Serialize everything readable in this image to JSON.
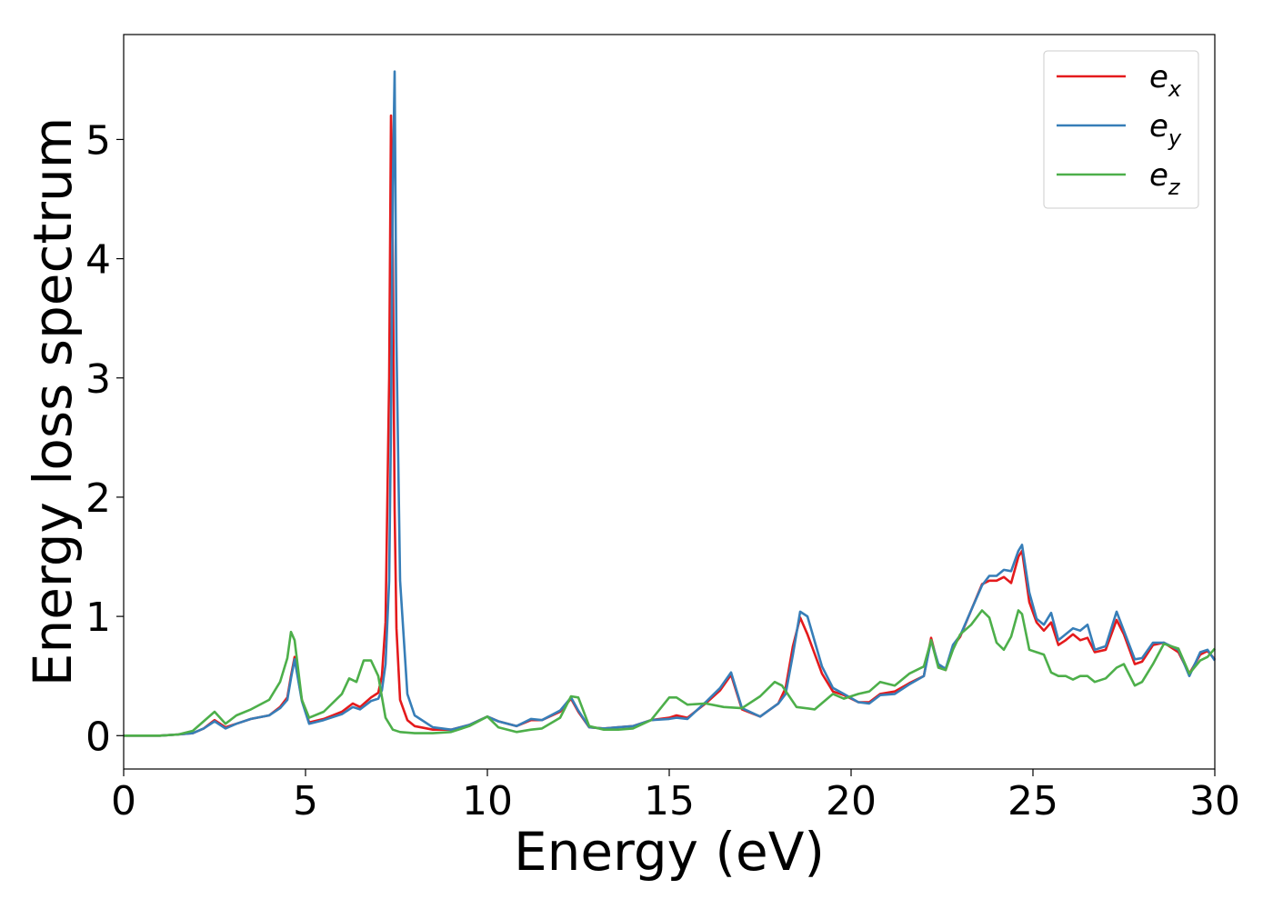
{
  "chart_data": {
    "type": "line",
    "xlabel": "Energy (eV)",
    "ylabel": "Energy loss spectrum",
    "xlim": [
      0,
      30
    ],
    "ylim": [
      -0.28,
      5.88
    ],
    "xticks": [
      0,
      5,
      10,
      15,
      20,
      25,
      30
    ],
    "yticks": [
      0,
      1,
      2,
      3,
      4,
      5
    ],
    "grid": false,
    "legend_position": "top-right",
    "series": [
      {
        "name": "e_x",
        "label_base": "e",
        "label_sub": "x",
        "color": "#e41a1c",
        "x": [
          0,
          1,
          1.5,
          1.9,
          2.2,
          2.5,
          2.8,
          3.1,
          3.5,
          4.0,
          4.3,
          4.5,
          4.6,
          4.7,
          4.9,
          5.1,
          5.5,
          6.0,
          6.3,
          6.5,
          6.8,
          7.0,
          7.1,
          7.2,
          7.3,
          7.35,
          7.4,
          7.45,
          7.5,
          7.6,
          7.8,
          8.0,
          8.5,
          9.0,
          9.5,
          10.0,
          10.3,
          10.8,
          11.2,
          11.5,
          12.0,
          12.3,
          12.5,
          12.8,
          13.2,
          13.6,
          14.0,
          14.5,
          15.0,
          15.2,
          15.5,
          16.0,
          16.4,
          16.7,
          17.0,
          17.5,
          18.0,
          18.2,
          18.4,
          18.6,
          18.8,
          19.2,
          19.5,
          19.8,
          20.2,
          20.5,
          20.8,
          21.2,
          21.6,
          22.0,
          22.2,
          22.4,
          22.6,
          22.8,
          23.0,
          23.3,
          23.6,
          23.8,
          24.0,
          24.2,
          24.4,
          24.6,
          24.7,
          24.9,
          25.1,
          25.3,
          25.5,
          25.7,
          25.9,
          26.1,
          26.3,
          26.5,
          26.7,
          27.0,
          27.3,
          27.5,
          27.8,
          28.0,
          28.3,
          28.6,
          29.0,
          29.3,
          29.6,
          29.8,
          30.0
        ],
        "values": [
          0,
          0,
          0.01,
          0.02,
          0.06,
          0.13,
          0.07,
          0.1,
          0.14,
          0.17,
          0.24,
          0.32,
          0.5,
          0.66,
          0.3,
          0.11,
          0.14,
          0.2,
          0.27,
          0.24,
          0.32,
          0.36,
          0.5,
          0.95,
          3.0,
          5.2,
          4.0,
          1.9,
          0.9,
          0.3,
          0.13,
          0.08,
          0.05,
          0.05,
          0.09,
          0.16,
          0.12,
          0.08,
          0.13,
          0.13,
          0.2,
          0.31,
          0.2,
          0.07,
          0.06,
          0.07,
          0.08,
          0.13,
          0.15,
          0.17,
          0.15,
          0.27,
          0.38,
          0.51,
          0.22,
          0.16,
          0.27,
          0.4,
          0.75,
          0.99,
          0.85,
          0.52,
          0.37,
          0.34,
          0.28,
          0.28,
          0.35,
          0.37,
          0.44,
          0.5,
          0.82,
          0.58,
          0.55,
          0.75,
          0.83,
          1.05,
          1.27,
          1.3,
          1.3,
          1.33,
          1.28,
          1.5,
          1.55,
          1.12,
          0.95,
          0.88,
          0.95,
          0.76,
          0.8,
          0.85,
          0.8,
          0.82,
          0.7,
          0.72,
          0.97,
          0.85,
          0.6,
          0.62,
          0.76,
          0.78,
          0.7,
          0.52,
          0.68,
          0.71,
          0.64
        ]
      },
      {
        "name": "e_y",
        "label_base": "e",
        "label_sub": "y",
        "color": "#377eb8",
        "x": [
          0,
          1,
          1.5,
          1.9,
          2.2,
          2.5,
          2.8,
          3.1,
          3.5,
          4.0,
          4.3,
          4.5,
          4.6,
          4.7,
          4.9,
          5.1,
          5.5,
          6.0,
          6.3,
          6.5,
          6.8,
          7.0,
          7.1,
          7.2,
          7.3,
          7.35,
          7.4,
          7.45,
          7.5,
          7.6,
          7.8,
          8.0,
          8.5,
          9.0,
          9.5,
          10.0,
          10.3,
          10.8,
          11.2,
          11.5,
          12.0,
          12.3,
          12.5,
          12.8,
          13.2,
          13.6,
          14.0,
          14.5,
          15.0,
          15.2,
          15.5,
          16.0,
          16.4,
          16.7,
          17.0,
          17.5,
          18.0,
          18.2,
          18.4,
          18.6,
          18.8,
          19.2,
          19.5,
          19.8,
          20.2,
          20.5,
          20.8,
          21.2,
          21.6,
          22.0,
          22.2,
          22.4,
          22.6,
          22.8,
          23.0,
          23.3,
          23.6,
          23.8,
          24.0,
          24.2,
          24.4,
          24.6,
          24.7,
          24.9,
          25.1,
          25.3,
          25.5,
          25.7,
          25.9,
          26.1,
          26.3,
          26.5,
          26.7,
          27.0,
          27.3,
          27.5,
          27.8,
          28.0,
          28.3,
          28.6,
          29.0,
          29.3,
          29.6,
          29.8,
          30.0
        ],
        "values": [
          0,
          0,
          0.01,
          0.02,
          0.06,
          0.12,
          0.06,
          0.1,
          0.14,
          0.17,
          0.23,
          0.3,
          0.48,
          0.64,
          0.29,
          0.1,
          0.13,
          0.18,
          0.24,
          0.22,
          0.29,
          0.31,
          0.38,
          0.6,
          1.3,
          2.6,
          4.6,
          5.57,
          3.3,
          1.3,
          0.35,
          0.17,
          0.07,
          0.05,
          0.09,
          0.16,
          0.12,
          0.08,
          0.14,
          0.13,
          0.21,
          0.32,
          0.21,
          0.07,
          0.06,
          0.07,
          0.08,
          0.13,
          0.14,
          0.15,
          0.14,
          0.28,
          0.4,
          0.53,
          0.23,
          0.16,
          0.27,
          0.35,
          0.68,
          1.04,
          1.0,
          0.58,
          0.4,
          0.35,
          0.28,
          0.27,
          0.34,
          0.35,
          0.43,
          0.5,
          0.8,
          0.6,
          0.56,
          0.76,
          0.84,
          1.05,
          1.26,
          1.34,
          1.34,
          1.39,
          1.38,
          1.55,
          1.6,
          1.2,
          0.98,
          0.93,
          1.03,
          0.8,
          0.85,
          0.9,
          0.88,
          0.93,
          0.72,
          0.75,
          1.04,
          0.88,
          0.64,
          0.65,
          0.78,
          0.78,
          0.72,
          0.5,
          0.7,
          0.72,
          0.63
        ]
      },
      {
        "name": "e_z",
        "label_base": "e",
        "label_sub": "z",
        "color": "#4daf4a",
        "x": [
          0,
          1,
          1.5,
          1.9,
          2.2,
          2.5,
          2.8,
          3.1,
          3.5,
          4.0,
          4.3,
          4.5,
          4.6,
          4.7,
          4.9,
          5.1,
          5.5,
          6.0,
          6.2,
          6.4,
          6.6,
          6.8,
          7.0,
          7.2,
          7.4,
          7.6,
          8.0,
          8.5,
          9.0,
          9.5,
          10.0,
          10.3,
          10.8,
          11.2,
          11.5,
          12.0,
          12.3,
          12.5,
          12.8,
          13.2,
          13.6,
          14.0,
          14.5,
          15.0,
          15.2,
          15.5,
          16.0,
          16.5,
          17.0,
          17.5,
          17.9,
          18.1,
          18.5,
          19.0,
          19.5,
          19.8,
          20.2,
          20.5,
          20.8,
          21.2,
          21.6,
          22.0,
          22.2,
          22.4,
          22.6,
          22.8,
          23.0,
          23.3,
          23.6,
          23.8,
          24.0,
          24.2,
          24.4,
          24.6,
          24.7,
          24.9,
          25.1,
          25.3,
          25.5,
          25.7,
          25.9,
          26.1,
          26.3,
          26.5,
          26.7,
          27.0,
          27.3,
          27.5,
          27.8,
          28.0,
          28.3,
          28.6,
          29.0,
          29.3,
          29.6,
          29.8,
          30.0
        ],
        "values": [
          0,
          0,
          0.01,
          0.04,
          0.12,
          0.2,
          0.1,
          0.17,
          0.22,
          0.3,
          0.45,
          0.65,
          0.87,
          0.8,
          0.3,
          0.15,
          0.2,
          0.35,
          0.48,
          0.45,
          0.63,
          0.63,
          0.5,
          0.15,
          0.05,
          0.03,
          0.02,
          0.02,
          0.03,
          0.08,
          0.16,
          0.07,
          0.03,
          0.05,
          0.06,
          0.15,
          0.33,
          0.32,
          0.08,
          0.05,
          0.05,
          0.06,
          0.13,
          0.32,
          0.32,
          0.26,
          0.27,
          0.24,
          0.23,
          0.33,
          0.45,
          0.42,
          0.24,
          0.22,
          0.35,
          0.31,
          0.35,
          0.37,
          0.45,
          0.42,
          0.52,
          0.58,
          0.8,
          0.57,
          0.55,
          0.72,
          0.85,
          0.93,
          1.05,
          0.99,
          0.78,
          0.72,
          0.83,
          1.05,
          1.02,
          0.72,
          0.7,
          0.68,
          0.53,
          0.5,
          0.5,
          0.47,
          0.5,
          0.5,
          0.45,
          0.48,
          0.57,
          0.6,
          0.42,
          0.45,
          0.6,
          0.77,
          0.73,
          0.52,
          0.63,
          0.66,
          0.73
        ]
      }
    ]
  }
}
